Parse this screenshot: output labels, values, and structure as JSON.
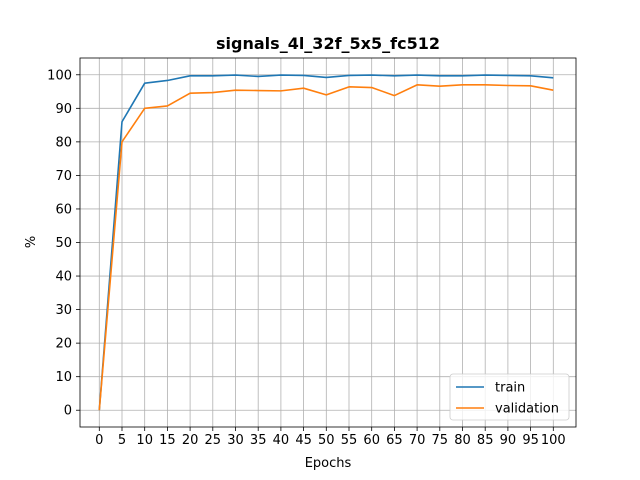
{
  "chart_data": {
    "type": "line",
    "title": "signals_4l_32f_5x5_fc512",
    "xlabel": "Epochs",
    "ylabel": "%",
    "xlim": [
      -4.25,
      105
    ],
    "ylim": [
      -5,
      105
    ],
    "xticks": [
      0,
      5,
      10,
      15,
      20,
      25,
      30,
      35,
      40,
      45,
      50,
      55,
      60,
      65,
      70,
      75,
      80,
      85,
      90,
      95,
      100
    ],
    "yticks": [
      0,
      10,
      20,
      30,
      40,
      50,
      60,
      70,
      80,
      90,
      100
    ],
    "grid": true,
    "legend_position": "lower-right",
    "x": [
      0,
      5,
      10,
      15,
      20,
      25,
      30,
      35,
      40,
      45,
      50,
      55,
      60,
      65,
      70,
      75,
      80,
      85,
      90,
      95,
      100
    ],
    "series": [
      {
        "name": "train",
        "color": "#1f77b4",
        "values": [
          0,
          86,
          97.5,
          98.3,
          99.7,
          99.7,
          99.9,
          99.5,
          99.9,
          99.8,
          99.2,
          99.8,
          99.9,
          99.7,
          99.9,
          99.7,
          99.7,
          99.9,
          99.8,
          99.7,
          99.1
        ]
      },
      {
        "name": "validation",
        "color": "#ff7f0e",
        "values": [
          0,
          80,
          90,
          90.7,
          94.5,
          94.7,
          95.4,
          95.3,
          95.2,
          96,
          94,
          96.4,
          96.2,
          93.8,
          97,
          96.6,
          97,
          97,
          96.8,
          96.7,
          95.4
        ]
      }
    ]
  }
}
